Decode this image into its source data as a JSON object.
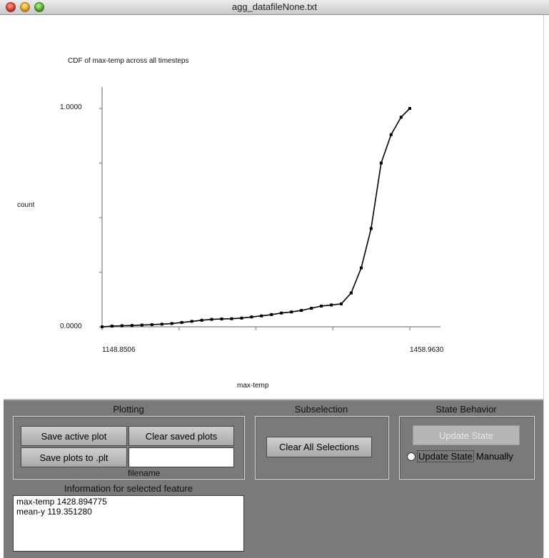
{
  "window": {
    "title": "agg_datafileNone.txt"
  },
  "chart_data": {
    "type": "line",
    "title": "CDF of max-temp across all timesteps",
    "xlabel": "max-temp",
    "ylabel": "count",
    "x_tick_labels": [
      "1148.8506",
      "1458.9630"
    ],
    "y_tick_labels": [
      "0.0000",
      "1.0000"
    ],
    "xlim": [
      1148.8506,
      1458.963
    ],
    "ylim": [
      0.0,
      1.0
    ],
    "x": [
      1148.8506,
      1158.8,
      1168.9,
      1179.0,
      1189.0,
      1199.1,
      1209.1,
      1219.2,
      1229.2,
      1239.3,
      1249.3,
      1259.3,
      1269.4,
      1279.4,
      1289.5,
      1299.5,
      1309.5,
      1319.6,
      1329.6,
      1339.7,
      1349.7,
      1359.8,
      1369.8,
      1379.9,
      1389.9,
      1399.9,
      1410.0,
      1420.0,
      1430.1,
      1440.1,
      1450.2,
      1458.963
    ],
    "y": [
      0.0,
      0.003,
      0.005,
      0.006,
      0.008,
      0.01,
      0.012,
      0.015,
      0.02,
      0.025,
      0.03,
      0.034,
      0.036,
      0.037,
      0.04,
      0.045,
      0.05,
      0.056,
      0.063,
      0.068,
      0.075,
      0.085,
      0.095,
      0.1,
      0.105,
      0.155,
      0.27,
      0.45,
      0.75,
      0.88,
      0.96,
      1.0
    ],
    "grid": false,
    "legend": "none"
  },
  "panel": {
    "plotting": {
      "title": "Plotting",
      "save_active_label": "Save active plot",
      "clear_saved_label": "Clear saved plots",
      "save_plt_label": "Save plots to .plt",
      "filename_value": "",
      "filename_caption": "filename"
    },
    "subselection": {
      "title": "Subselection",
      "clear_all_label": "Clear All Selections"
    },
    "state_behavior": {
      "title": "State Behavior",
      "update_state_label": "Update State",
      "radio_label": "Update State",
      "radio_suffix": "Manually"
    },
    "info": {
      "title": "Information for selected feature",
      "lines": [
        "max-temp 1428.894775",
        "mean-y 119.351280"
      ]
    }
  }
}
